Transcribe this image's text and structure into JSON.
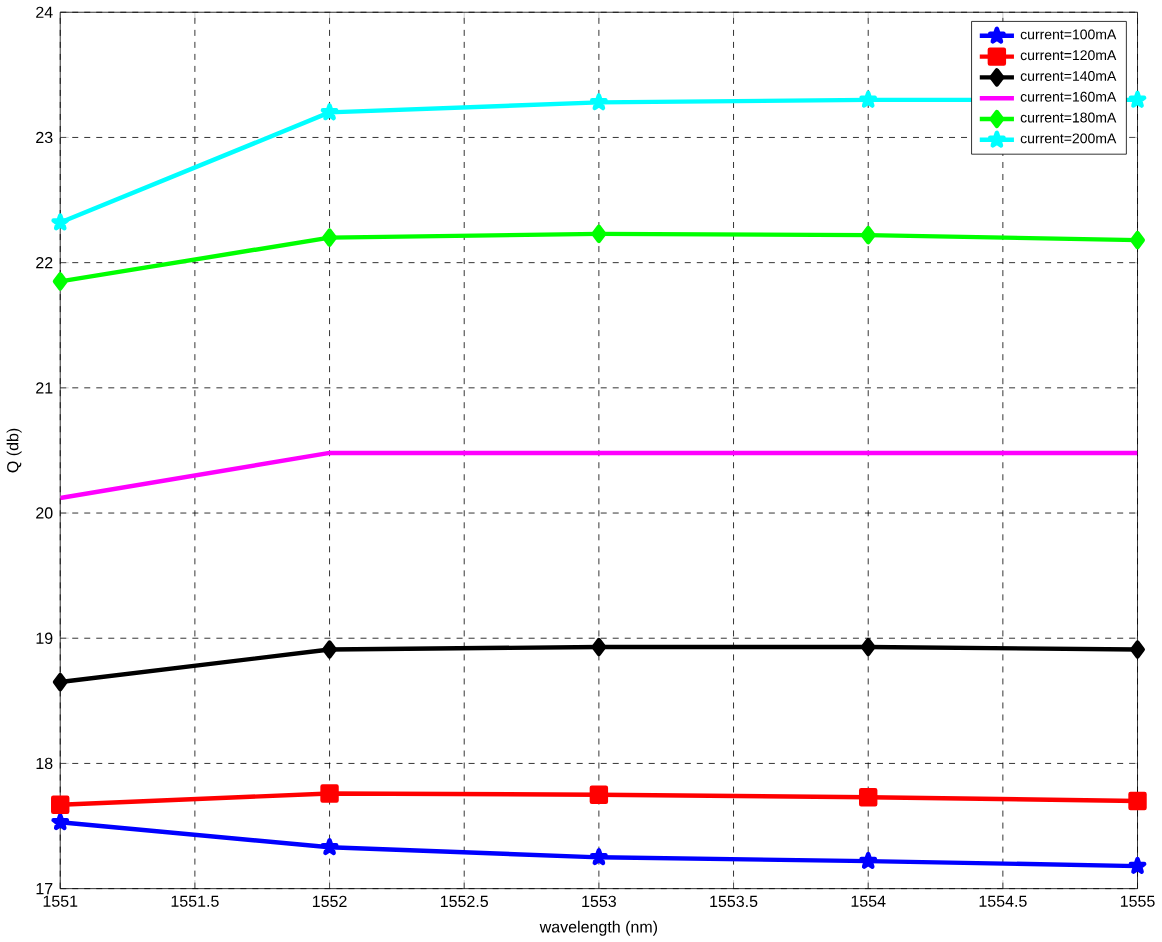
{
  "chart_data": {
    "type": "line",
    "xlabel": "wavelength (nm)",
    "ylabel": "Q (db)",
    "x": [
      1551,
      1552,
      1553,
      1554,
      1555
    ],
    "series": [
      {
        "name": "current=100mA",
        "color": "#0000ff",
        "marker": "star",
        "values": [
          17.53,
          17.33,
          17.25,
          17.22,
          17.18
        ]
      },
      {
        "name": "current=120mA",
        "color": "#ff0000",
        "marker": "square",
        "values": [
          17.67,
          17.76,
          17.75,
          17.73,
          17.7
        ]
      },
      {
        "name": "current=140mA",
        "color": "#000000",
        "marker": "diamond",
        "values": [
          18.65,
          18.91,
          18.93,
          18.93,
          18.91
        ]
      },
      {
        "name": "current=160mA",
        "color": "#ff00ff",
        "marker": "none",
        "values": [
          20.12,
          20.48,
          20.48,
          20.48,
          20.48
        ]
      },
      {
        "name": "current=180mA",
        "color": "#00ff00",
        "marker": "diamond",
        "values": [
          21.85,
          22.2,
          22.23,
          22.22,
          22.18
        ]
      },
      {
        "name": "current=200mA",
        "color": "#00ffff",
        "marker": "star",
        "values": [
          22.32,
          23.2,
          23.28,
          23.3,
          23.3
        ]
      }
    ],
    "xlim": [
      1551,
      1555
    ],
    "ylim": [
      17,
      24
    ],
    "xticks": [
      1551,
      1551.5,
      1552,
      1552.5,
      1553,
      1553.5,
      1554,
      1554.5,
      1555
    ],
    "yticks": [
      17,
      18,
      19,
      20,
      21,
      22,
      23,
      24
    ],
    "grid": true,
    "legend": "top right",
    "line_style": "solid"
  }
}
